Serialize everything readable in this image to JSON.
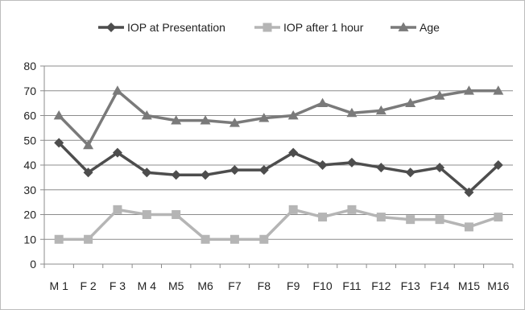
{
  "chart_data": {
    "type": "line",
    "title": "",
    "xlabel": "",
    "ylabel": "",
    "categories": [
      "M 1",
      "F 2",
      "F 3",
      "M 4",
      "M5",
      "M6",
      "F7",
      "F8",
      "F9",
      "F10",
      "F11",
      "F12",
      "F13",
      "F14",
      "M15",
      "M16"
    ],
    "yticks": [
      "0",
      "10",
      "20",
      "30",
      "40",
      "50",
      "60",
      "70",
      "80"
    ],
    "ylim": [
      0,
      80
    ],
    "grid": true,
    "legend_position": "top",
    "series": [
      {
        "name": "IOP at Presentation",
        "color": "#4d4d4d",
        "marker": "diamond",
        "values": [
          49,
          37,
          45,
          37,
          36,
          36,
          38,
          38,
          45,
          40,
          41,
          39,
          37,
          39,
          29,
          40
        ]
      },
      {
        "name": "IOP after 1 hour",
        "color": "#b5b5b5",
        "marker": "square",
        "values": [
          10,
          10,
          22,
          20,
          20,
          10,
          10,
          10,
          22,
          19,
          22,
          19,
          18,
          18,
          15,
          19
        ]
      },
      {
        "name": "Age",
        "color": "#7a7a7a",
        "marker": "triangle",
        "values": [
          60,
          48,
          70,
          60,
          58,
          58,
          57,
          59,
          60,
          65,
          61,
          62,
          65,
          68,
          70,
          70
        ]
      }
    ]
  }
}
